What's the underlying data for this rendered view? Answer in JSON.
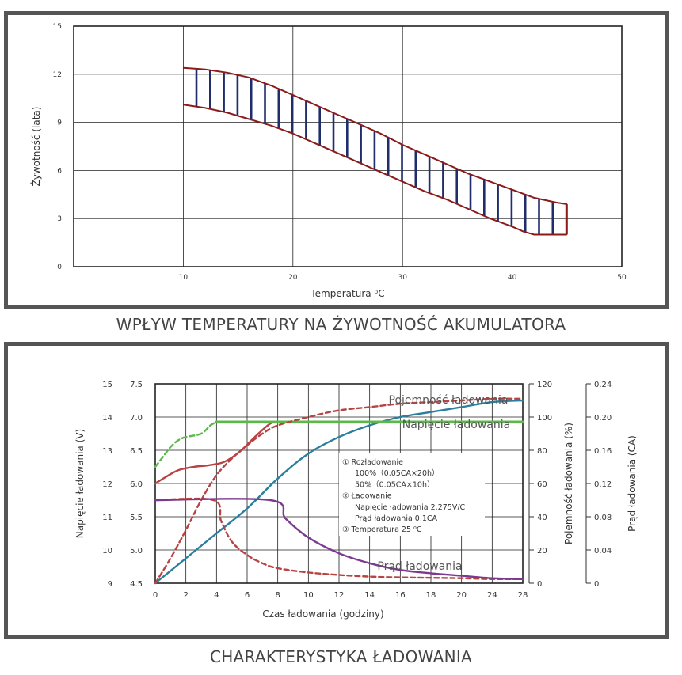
{
  "colors": {
    "frame": "#555555",
    "grid": "#222222",
    "band_outline": "#8b1a1a",
    "band_hatch": "#1f2d6b",
    "teal": "#2a7f9e",
    "green": "#5cb84a",
    "red": "#b84343",
    "purple": "#7b3a8f",
    "text": "#333333"
  },
  "chart_data": [
    {
      "type": "area",
      "title": "WPŁYW TEMPERATURY NA ŻYWOTNOŚĆ AKUMULATORA",
      "xlabel": "Temperatura ⁰C",
      "ylabel": "Żywotność (lata)",
      "xlim": [
        0,
        50
      ],
      "ylim": [
        0,
        15
      ],
      "x_ticks": [
        "10",
        "20",
        "30",
        "40",
        "50"
      ],
      "y_ticks": [
        "0",
        "3",
        "6",
        "9",
        "12",
        "15"
      ],
      "grid": true,
      "series": [
        {
          "role": "upper",
          "x": [
            10,
            12,
            14,
            16,
            18,
            20,
            22,
            24,
            26,
            28,
            30,
            32,
            34,
            36,
            38,
            40,
            42,
            44,
            45
          ],
          "values": [
            12.4,
            12.3,
            12.1,
            11.8,
            11.3,
            10.7,
            10.1,
            9.5,
            8.9,
            8.3,
            7.6,
            7.0,
            6.4,
            5.8,
            5.3,
            4.8,
            4.3,
            4.0,
            3.9
          ]
        },
        {
          "role": "lower",
          "x": [
            10,
            12,
            14,
            16,
            18,
            20,
            22,
            24,
            26,
            28,
            30,
            32,
            34,
            36,
            38,
            40,
            41,
            42,
            43,
            45
          ],
          "values": [
            10.1,
            9.9,
            9.6,
            9.2,
            8.8,
            8.3,
            7.7,
            7.1,
            6.5,
            5.9,
            5.3,
            4.7,
            4.2,
            3.6,
            3.0,
            2.5,
            2.2,
            2.0,
            2.0,
            2.0
          ]
        }
      ]
    },
    {
      "type": "line",
      "title": "CHARAKTERYSTYKA ŁADOWANIA",
      "xlabel": "Czas ładowania (godziny)",
      "x_ticks": [
        "0",
        "2",
        "4",
        "6",
        "8",
        "10",
        "12",
        "14",
        "16",
        "18",
        "20",
        "24",
        "28"
      ],
      "xlim": [
        0,
        28
      ],
      "grid": true,
      "axes": {
        "voltage": {
          "label": "Napięcie ładowania (V)",
          "ticks": [
            "9",
            "10",
            "11",
            "12",
            "13",
            "14",
            "15"
          ],
          "range": [
            9,
            15
          ]
        },
        "cell_voltage": {
          "ticks": [
            "4.5",
            "5.0",
            "5.5",
            "6.0",
            "6.5",
            "7.0",
            "7.5"
          ],
          "range": [
            4.5,
            7.5
          ]
        },
        "capacity": {
          "label": "Pojemność ładowania (%)",
          "ticks": [
            "0",
            "20",
            "40",
            "60",
            "80",
            "100",
            "120"
          ],
          "range": [
            0,
            120
          ]
        },
        "current": {
          "label": "Prąd ładowania (CA)",
          "ticks": [
            "0",
            "0.04",
            "0.08",
            "0.12",
            "0.16",
            "0.20",
            "0.24"
          ],
          "range": [
            0,
            0.24
          ]
        }
      },
      "series": [
        {
          "name": "Pojemność ładowania",
          "style": "dashed",
          "color_key": "red",
          "axis": "capacity",
          "x": [
            0,
            1,
            2,
            3,
            4,
            5,
            6,
            7,
            8,
            10,
            12,
            14,
            16,
            18,
            20,
            24,
            28
          ],
          "values": [
            0,
            15,
            32,
            50,
            65,
            75,
            83,
            90,
            95,
            100,
            104,
            106,
            108,
            109,
            110,
            111,
            111
          ]
        },
        {
          "name": "Napięcie ładowania",
          "style": "solid",
          "color_key": "green",
          "axis": "voltage",
          "x": [
            4,
            28
          ],
          "values": [
            13.85,
            13.85
          ]
        },
        {
          "style": "dashed",
          "color_key": "green",
          "axis": "voltage",
          "x": [
            0,
            0.5,
            1,
            1.5,
            2,
            3,
            3.6,
            4
          ],
          "values": [
            12.5,
            12.8,
            13.1,
            13.3,
            13.4,
            13.5,
            13.75,
            13.85
          ]
        },
        {
          "style": "solid",
          "color_key": "red",
          "axis": "voltage",
          "x": [
            0,
            0.7,
            1.5,
            2.5,
            3.5,
            4.5,
            5.5,
            6.5,
            7.5,
            8
          ],
          "values": [
            12.0,
            12.2,
            12.4,
            12.5,
            12.55,
            12.65,
            12.95,
            13.4,
            13.8,
            13.85
          ]
        },
        {
          "style": "solid",
          "color_key": "teal",
          "axis": "capacity",
          "x": [
            0,
            2,
            4,
            6,
            8,
            10,
            12,
            14,
            16,
            18,
            20,
            24,
            28
          ],
          "values": [
            0,
            15,
            30,
            45,
            63,
            78,
            88,
            95,
            100,
            103,
            106,
            109,
            110
          ]
        },
        {
          "name": "Prąd ładowania",
          "style": "solid",
          "color_key": "purple",
          "axis": "current",
          "x": [
            0,
            7.5,
            8.5,
            10,
            12,
            14,
            16,
            18,
            20,
            24,
            28
          ],
          "values": [
            0.1,
            0.1,
            0.078,
            0.055,
            0.036,
            0.024,
            0.016,
            0.012,
            0.009,
            0.006,
            0.005
          ]
        },
        {
          "style": "dashed",
          "color_key": "red",
          "axis": "current",
          "x": [
            0,
            3.8,
            4.3,
            5,
            6,
            7,
            8,
            10,
            12,
            14,
            16,
            20,
            24,
            28
          ],
          "values": [
            0.1,
            0.1,
            0.075,
            0.05,
            0.034,
            0.024,
            0.018,
            0.013,
            0.01,
            0.008,
            0.007,
            0.006,
            0.005,
            0.005
          ]
        }
      ],
      "legend_box": [
        "① Rozładowanie",
        "100%（0.05CA×20h）",
        "50%（0.05CA×10h）",
        "② Ładowanie",
        "Napięcie ładowania 2.275V/C",
        "Prąd ładowania 0.1CA",
        "③ Temperatura 25 ⁰C"
      ]
    }
  ]
}
